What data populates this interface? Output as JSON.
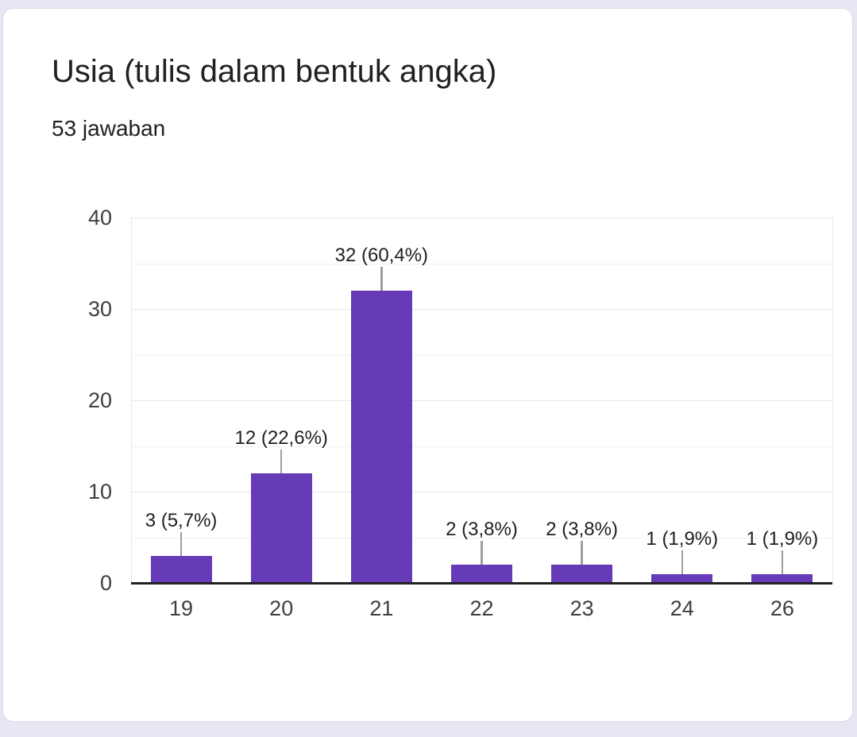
{
  "page": {
    "background_color": "#e9e6f3"
  },
  "card": {
    "background_color": "#ffffff",
    "border_color": "#dcd9e8"
  },
  "chart_data": {
    "type": "bar",
    "title": "Usia (tulis dalam bentuk angka)",
    "subtitle": "53 jawaban",
    "categories": [
      "19",
      "20",
      "21",
      "22",
      "23",
      "24",
      "26"
    ],
    "values": [
      3,
      12,
      32,
      2,
      2,
      1,
      1
    ],
    "value_labels": [
      "3 (5,7%)",
      "12 (22,6%)",
      "32 (60,4%)",
      "2 (3,8%)",
      "2 (3,8%)",
      "1 (1,9%)",
      "1 (1,9%)"
    ],
    "xlabel": "",
    "ylabel": "",
    "ylim": [
      0,
      40
    ],
    "y_major_ticks": [
      0,
      10,
      20,
      30,
      40
    ],
    "y_minor_step": 5,
    "grid": "horizontal",
    "legend_position": "none",
    "bar_color": "#673ab7",
    "connector_color": "#9e9e9e",
    "axis_line_color": "#212121",
    "label_text_color": "#212121"
  }
}
